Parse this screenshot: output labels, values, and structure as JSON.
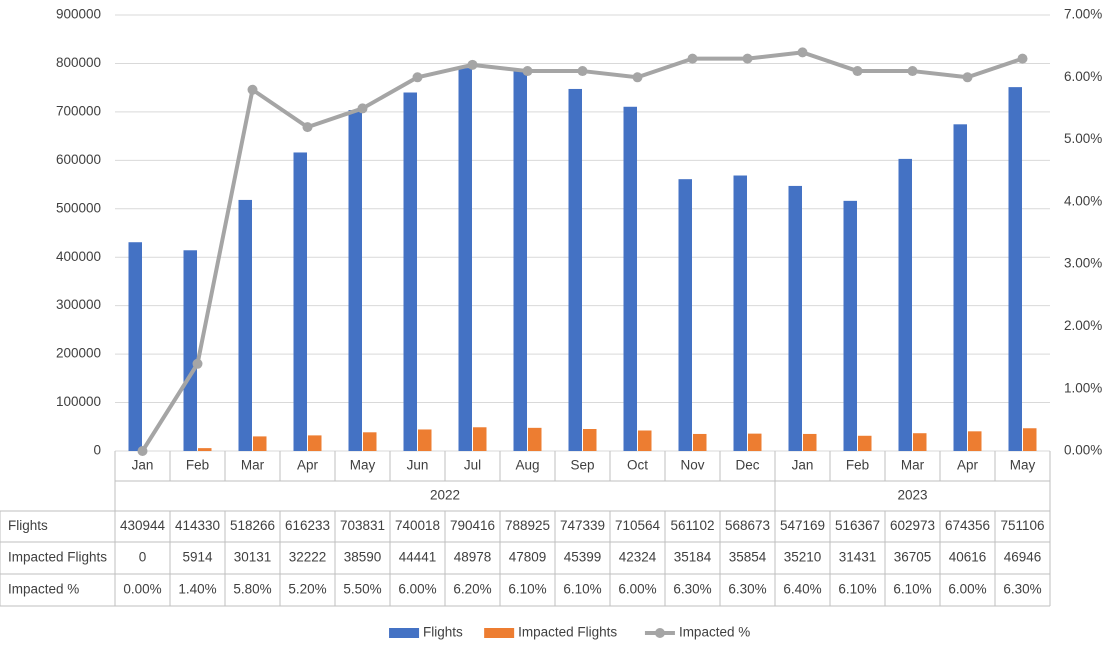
{
  "chart_data": {
    "type": "bar-line",
    "categories": [
      "Jan",
      "Feb",
      "Mar",
      "Apr",
      "May",
      "Jun",
      "Jul",
      "Aug",
      "Sep",
      "Oct",
      "Nov",
      "Dec",
      "Jan",
      "Feb",
      "Mar",
      "Apr",
      "May"
    ],
    "category_groups": [
      {
        "label": "2022",
        "count": 12
      },
      {
        "label": "2023",
        "count": 5
      }
    ],
    "series": [
      {
        "name": "Flights",
        "type": "bar",
        "color": "#4472c4",
        "values": [
          430944,
          414330,
          518266,
          616233,
          703831,
          740018,
          790416,
          788925,
          747339,
          710564,
          561102,
          568673,
          547169,
          516367,
          602973,
          674356,
          751106
        ]
      },
      {
        "name": "Impacted Flights",
        "type": "bar",
        "color": "#ed7d31",
        "values": [
          0,
          5914,
          30131,
          32222,
          38590,
          44441,
          48978,
          47809,
          45399,
          42324,
          35184,
          35854,
          35210,
          31431,
          36705,
          40616,
          46946
        ]
      },
      {
        "name": "Impacted %",
        "type": "line",
        "axis": "y2",
        "color": "#a5a5a5",
        "values": [
          0,
          1.4,
          5.8,
          5.2,
          5.5,
          6.0,
          6.2,
          6.1,
          6.1,
          6.0,
          6.3,
          6.3,
          6.4,
          6.1,
          6.1,
          6.0,
          6.3
        ],
        "value_labels": [
          "0.00%",
          "1.40%",
          "5.80%",
          "5.20%",
          "5.50%",
          "6.00%",
          "6.20%",
          "6.10%",
          "6.10%",
          "6.00%",
          "6.30%",
          "6.30%",
          "6.40%",
          "6.10%",
          "6.10%",
          "6.00%",
          "6.30%"
        ]
      }
    ],
    "ylim": [
      0,
      900000
    ],
    "yticks": [
      0,
      100000,
      200000,
      300000,
      400000,
      500000,
      600000,
      700000,
      800000,
      900000
    ],
    "y2lim": [
      0,
      7
    ],
    "y2ticks": [
      {
        "value": 0,
        "label": "0.00%"
      },
      {
        "value": 1,
        "label": "1.00%"
      },
      {
        "value": 2,
        "label": "2.00%"
      },
      {
        "value": 3,
        "label": "3.00%"
      },
      {
        "value": 4,
        "label": "4.00%"
      },
      {
        "value": 5,
        "label": "5.00%"
      },
      {
        "value": 6,
        "label": "6.00%"
      },
      {
        "value": 7,
        "label": "7.00%"
      }
    ],
    "grid": true,
    "legend": "bottom",
    "data_table": true
  }
}
